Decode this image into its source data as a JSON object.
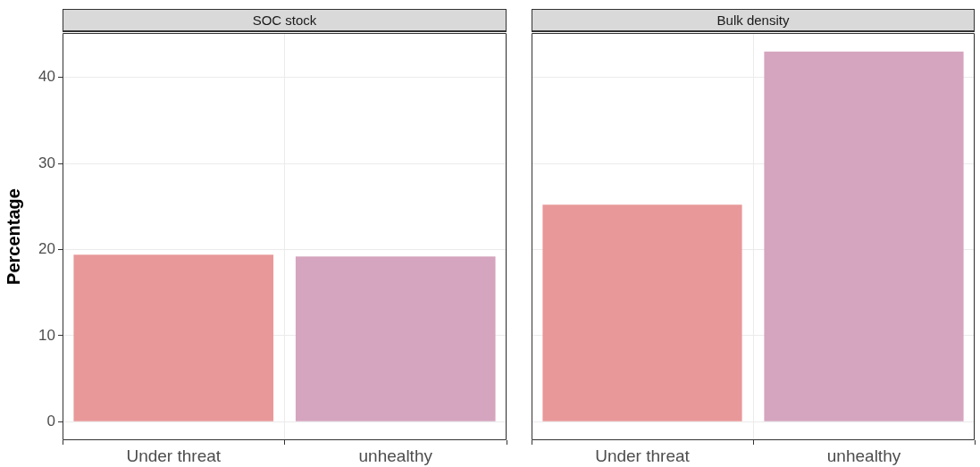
{
  "chart_data": [
    {
      "type": "bar",
      "title": "SOC stock",
      "ylabel": "Percentage",
      "categories": [
        "Under threat",
        "unhealthy"
      ],
      "values": [
        19.4,
        19.2
      ],
      "colors": [
        "#e89899",
        "#d5a4be"
      ],
      "ylim": [
        -2.15,
        45.15
      ],
      "yticks": [
        0,
        10,
        20,
        30,
        40
      ],
      "grid": true,
      "legend": false
    },
    {
      "type": "bar",
      "title": "Bulk density",
      "categories": [
        "Under threat",
        "unhealthy"
      ],
      "values": [
        25.2,
        43.0
      ],
      "colors": [
        "#e89899",
        "#d5a4be"
      ],
      "ylim": [
        -2.15,
        45.15
      ],
      "yticks": [
        0,
        10,
        20,
        30,
        40
      ],
      "grid": true,
      "legend": false,
      "tick_labels": "x"
    }
  ]
}
